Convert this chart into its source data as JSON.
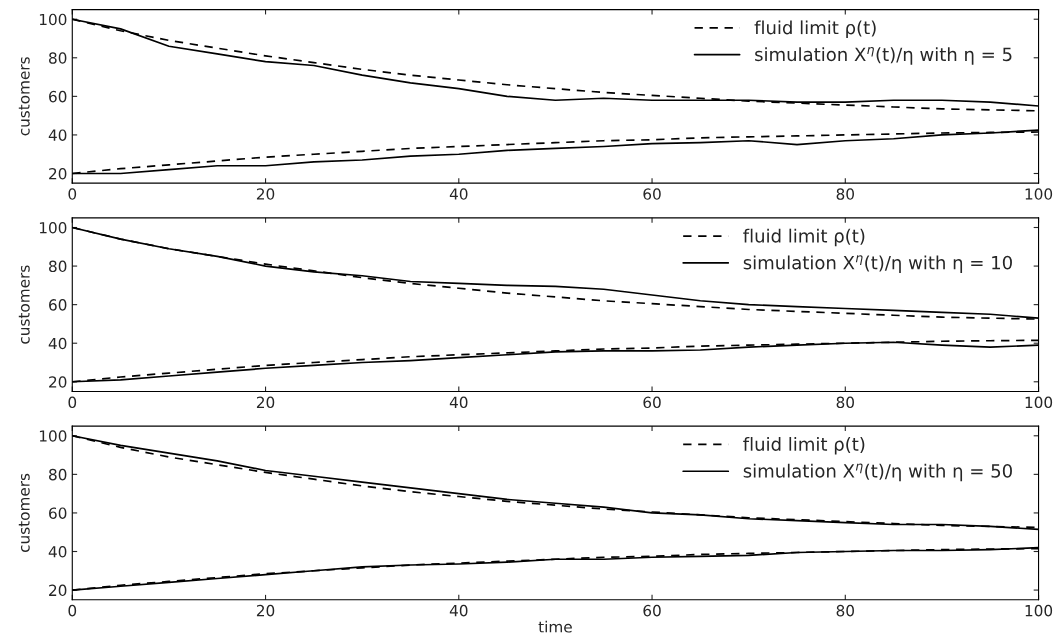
{
  "chart_data": [
    {
      "type": "line",
      "ylabel": "customers",
      "x": [
        0,
        5,
        10,
        15,
        20,
        25,
        30,
        35,
        40,
        45,
        50,
        55,
        60,
        65,
        70,
        75,
        80,
        85,
        90,
        95,
        100
      ],
      "xlim": [
        0,
        100
      ],
      "xticks": [
        0,
        20,
        40,
        60,
        80,
        100
      ],
      "ylim": [
        15,
        105
      ],
      "yticks": [
        20,
        40,
        60,
        80,
        100
      ],
      "legend": "top right",
      "grid": false,
      "series": [
        {
          "name": "fluid limit ρ(t)",
          "color": "#000000",
          "line_style": "dashed",
          "values": [
            100,
            94,
            89,
            85,
            81,
            77.5,
            74,
            71,
            68.5,
            66,
            64,
            62,
            60.5,
            59,
            57.5,
            56.5,
            55.5,
            54.5,
            53.5,
            53,
            52.5
          ]
        },
        {
          "color": "#000000",
          "line_style": "dashed",
          "values": [
            20,
            22.5,
            24.5,
            26.5,
            28.5,
            30,
            31.5,
            33,
            34,
            35,
            36,
            37,
            37.5,
            38.5,
            39,
            39.5,
            40,
            40.5,
            41,
            41.3,
            41.5
          ]
        },
        {
          "name": "simulation X$^{η}$(t)/η with η = 5",
          "color": "#000000",
          "line_style": "solid",
          "values": [
            100,
            95,
            86,
            82,
            78,
            76,
            71,
            67,
            64,
            60,
            58,
            59,
            58,
            58,
            58,
            57,
            57,
            58,
            58,
            57,
            55
          ]
        },
        {
          "color": "#000000",
          "line_style": "solid",
          "values": [
            20,
            20,
            22,
            24,
            24,
            26,
            27,
            29,
            30,
            32,
            33,
            34,
            35.5,
            36,
            37,
            35,
            37,
            38,
            40,
            41,
            42.5
          ]
        }
      ]
    },
    {
      "type": "line",
      "ylabel": "customers",
      "x": [
        0,
        5,
        10,
        15,
        20,
        25,
        30,
        35,
        40,
        45,
        50,
        55,
        60,
        65,
        70,
        75,
        80,
        85,
        90,
        95,
        100
      ],
      "xlim": [
        0,
        100
      ],
      "xticks": [
        0,
        20,
        40,
        60,
        80,
        100
      ],
      "ylim": [
        15,
        105
      ],
      "yticks": [
        20,
        40,
        60,
        80,
        100
      ],
      "legend": "top right",
      "grid": false,
      "series": [
        {
          "name": "fluid limit ρ(t)",
          "color": "#000000",
          "line_style": "dashed",
          "values": [
            100,
            94,
            89,
            85,
            81,
            77.5,
            74,
            71,
            68.5,
            66,
            64,
            62,
            60.5,
            59,
            57.5,
            56.5,
            55.5,
            54.5,
            53.5,
            53,
            52.5
          ]
        },
        {
          "color": "#000000",
          "line_style": "dashed",
          "values": [
            20,
            22.5,
            24.5,
            26.5,
            28.5,
            30,
            31.5,
            33,
            34,
            35,
            36,
            37,
            37.5,
            38.5,
            39,
            39.5,
            40,
            40.5,
            41,
            41.3,
            41.5
          ]
        },
        {
          "name": "simulation X$^{η}$(t)/η with η = 10",
          "color": "#000000",
          "line_style": "solid",
          "values": [
            100,
            94,
            89,
            85,
            80,
            77,
            75,
            72,
            71,
            70,
            69.5,
            68,
            65,
            62,
            60,
            59,
            58,
            57,
            56,
            55,
            53
          ]
        },
        {
          "color": "#000000",
          "line_style": "solid",
          "values": [
            20,
            21,
            23,
            25,
            27,
            28.5,
            30,
            31,
            32.5,
            34,
            35.5,
            36,
            36,
            36.5,
            38,
            39,
            40,
            40.5,
            39,
            38,
            39
          ]
        }
      ]
    },
    {
      "type": "line",
      "ylabel": "customers",
      "xlabel": "time",
      "x": [
        0,
        5,
        10,
        15,
        20,
        25,
        30,
        35,
        40,
        45,
        50,
        55,
        60,
        65,
        70,
        75,
        80,
        85,
        90,
        95,
        100
      ],
      "xlim": [
        0,
        100
      ],
      "xticks": [
        0,
        20,
        40,
        60,
        80,
        100
      ],
      "ylim": [
        15,
        105
      ],
      "yticks": [
        20,
        40,
        60,
        80,
        100
      ],
      "legend": "top right",
      "grid": false,
      "series": [
        {
          "name": "fluid limit ρ(t)",
          "color": "#000000",
          "line_style": "dashed",
          "values": [
            100,
            94,
            89,
            85,
            81,
            77.5,
            74,
            71,
            68.5,
            66,
            64,
            62,
            60.5,
            59,
            57.5,
            56.5,
            55.5,
            54.5,
            53.5,
            53,
            52.5
          ]
        },
        {
          "color": "#000000",
          "line_style": "dashed",
          "values": [
            20,
            22.5,
            24.5,
            26.5,
            28.5,
            30,
            31.5,
            33,
            34,
            35,
            36,
            37,
            37.5,
            38.5,
            39,
            39.5,
            40,
            40.5,
            41,
            41.3,
            41.5
          ]
        },
        {
          "name": "simulation X$^{η}$(t)/η with η = 50",
          "color": "#000000",
          "line_style": "solid",
          "values": [
            100,
            95,
            91,
            87,
            82,
            79,
            76,
            73,
            70,
            67,
            65,
            63,
            60,
            59,
            57,
            56,
            55,
            54,
            54,
            53,
            51.5
          ]
        },
        {
          "color": "#000000",
          "line_style": "solid",
          "values": [
            20,
            22,
            24,
            26,
            28,
            30,
            32,
            33,
            33.5,
            34.5,
            36,
            36,
            37,
            37.5,
            38,
            39.5,
            40,
            40.5,
            40.5,
            41,
            42
          ]
        }
      ]
    }
  ]
}
